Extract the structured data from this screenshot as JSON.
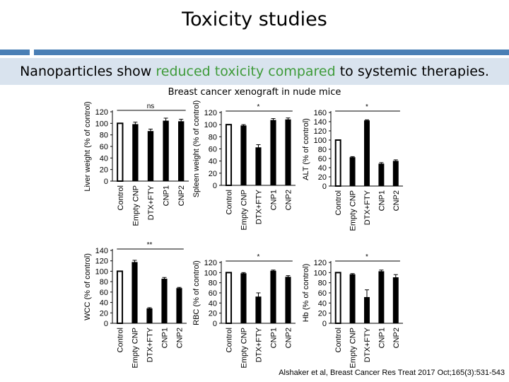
{
  "slide": {
    "title": "Toxicity studies",
    "banner_prefix": "Nanoparticles show ",
    "banner_highlight": "reduced toxicity compared",
    "banner_suffix": " to systemic therapies.",
    "highlight_color": "#3f9b3a",
    "banner_bg": "#d9e3ee",
    "rule_color": "#4a7fb5",
    "subtitle": "Breast cancer xenograft in nude mice",
    "citation": "Alshaker et al, Breast Cancer Res Treat 2017 Oct;165(3):531-543"
  },
  "chart_data": [
    {
      "type": "bar",
      "ylabel": "Liver weight (% of control)",
      "categories": [
        "Control",
        "Empty CNP",
        "DTX+FTY",
        "CNP1",
        "CNP2"
      ],
      "values": [
        100,
        98,
        86,
        104,
        103
      ],
      "errors": [
        0,
        4,
        4,
        5,
        4
      ],
      "ylim": [
        0,
        120
      ],
      "ticks": [
        0,
        20,
        40,
        60,
        80,
        100,
        120
      ],
      "significance": "ns"
    },
    {
      "type": "bar",
      "ylabel": "Spleen weight (% of control)",
      "categories": [
        "Control",
        "Empty CNP",
        "DTX+FTY",
        "CNP1",
        "CNP2"
      ],
      "values": [
        100,
        98,
        62,
        107,
        108
      ],
      "errors": [
        0,
        2,
        5,
        3,
        3
      ],
      "ylim": [
        0,
        120
      ],
      "ticks": [
        0,
        20,
        40,
        60,
        80,
        100,
        120
      ],
      "significance": "*"
    },
    {
      "type": "bar",
      "ylabel": "ALT (% of control)",
      "categories": [
        "Control",
        "Empty CNP",
        "DTX+FTY",
        "CNP1",
        "CNP2"
      ],
      "values": [
        100,
        62,
        142,
        48,
        54
      ],
      "errors": [
        0,
        2,
        2,
        3,
        3
      ],
      "ylim": [
        0,
        160
      ],
      "ticks": [
        0,
        20,
        40,
        60,
        80,
        100,
        120,
        140,
        160
      ],
      "significance": "*"
    },
    {
      "type": "bar",
      "ylabel": "WCC (% of control)",
      "categories": [
        "Control",
        "Empty CNP",
        "DTX+FTY",
        "CNP1",
        "CNP2"
      ],
      "values": [
        100,
        117,
        28,
        85,
        67
      ],
      "errors": [
        0,
        4,
        2,
        3,
        2
      ],
      "ylim": [
        0,
        140
      ],
      "ticks": [
        0,
        20,
        40,
        60,
        80,
        100,
        120,
        140
      ],
      "significance": "**"
    },
    {
      "type": "bar",
      "ylabel": "RBC (% of control)",
      "categories": [
        "Control",
        "Empty CNP",
        "DTX+FTY",
        "CNP1",
        "CNP2"
      ],
      "values": [
        100,
        98,
        52,
        103,
        91
      ],
      "errors": [
        0,
        2,
        8,
        2,
        3
      ],
      "ylim": [
        0,
        120
      ],
      "ticks": [
        0,
        20,
        40,
        60,
        80,
        100,
        120
      ],
      "significance": "*"
    },
    {
      "type": "bar",
      "ylabel": "Hb (% of control)",
      "categories": [
        "Control",
        "Empty CNP",
        "DTX+FTY",
        "CNP1",
        "CNP2"
      ],
      "values": [
        100,
        96,
        51,
        102,
        90
      ],
      "errors": [
        0,
        2,
        15,
        3,
        6
      ],
      "ylim": [
        0,
        120
      ],
      "ticks": [
        0,
        20,
        40,
        60,
        80,
        100,
        120
      ],
      "significance": "*"
    }
  ]
}
